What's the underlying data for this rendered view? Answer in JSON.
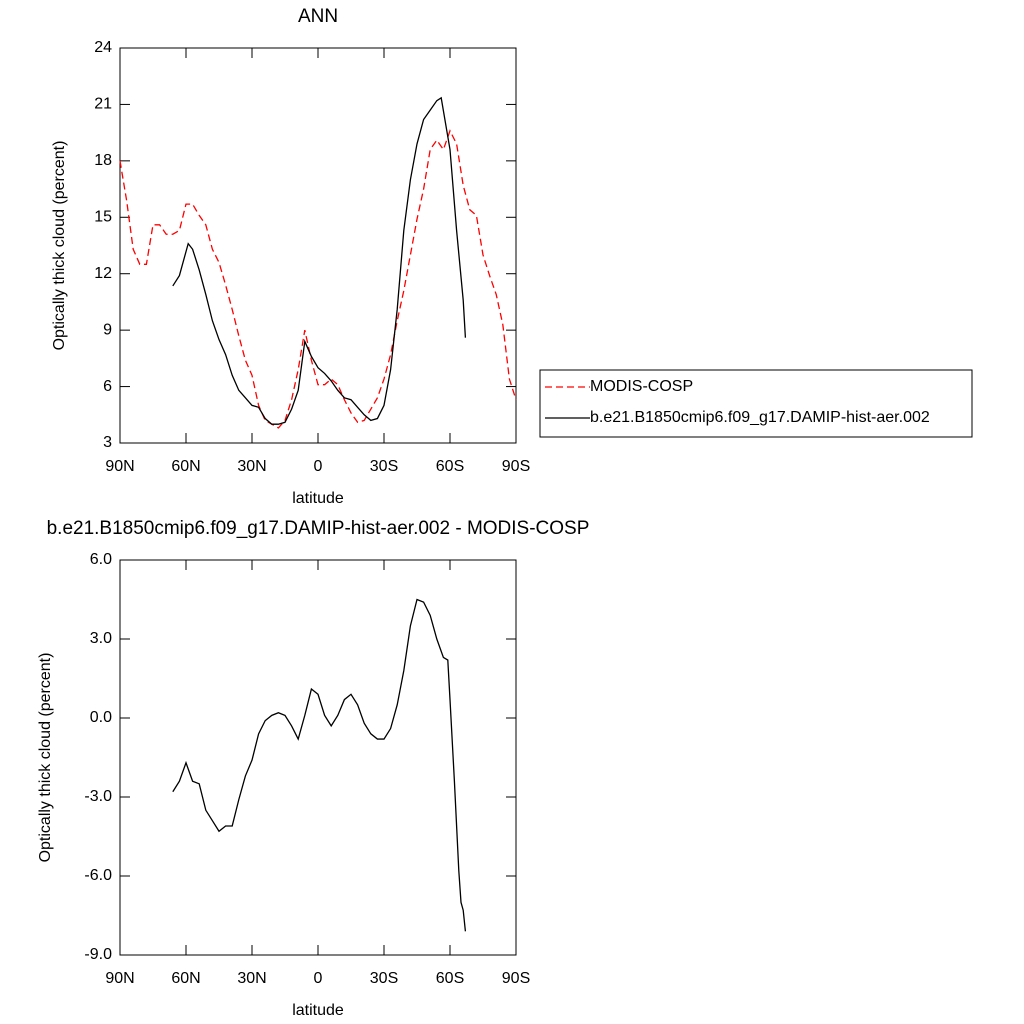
{
  "chart_data": [
    {
      "type": "line",
      "title": "ANN",
      "xlabel": "latitude",
      "ylabel": "Optically thick cloud (percent)",
      "xlim": [
        90,
        -90
      ],
      "ylim": [
        3,
        24
      ],
      "xticks": [
        {
          "value": 90,
          "label": "90N"
        },
        {
          "value": 60,
          "label": "60N"
        },
        {
          "value": 30,
          "label": "30N"
        },
        0,
        {
          "value": -30,
          "label": "30S"
        },
        {
          "value": -60,
          "label": "60S"
        },
        {
          "value": -90,
          "label": "90S"
        }
      ],
      "yticks": [
        3,
        6,
        9,
        12,
        15,
        18,
        21,
        24
      ],
      "legend": "right",
      "series": [
        {
          "name": "MODIS-COSP",
          "color": "#ff0000",
          "dashed": true,
          "x": [
            90,
            87,
            84,
            81,
            78,
            75,
            72,
            69,
            66,
            63,
            60,
            57,
            54,
            51,
            48,
            45,
            42,
            39,
            36,
            33,
            30,
            27,
            24,
            21,
            18,
            15,
            12,
            9,
            6,
            3,
            0,
            -3,
            -6,
            -9,
            -12,
            -15,
            -18,
            -21,
            -24,
            -27,
            -30,
            -33,
            -36,
            -39,
            -42,
            -45,
            -48,
            -51,
            -54,
            -57,
            -60,
            -63,
            -66,
            -69,
            -72,
            -75,
            -78,
            -81,
            -84,
            -87,
            -90
          ],
          "values": [
            18.0,
            15.9,
            13.3,
            12.5,
            12.5,
            14.6,
            14.6,
            14.1,
            14.1,
            14.3,
            15.7,
            15.7,
            15.1,
            14.6,
            13.3,
            12.6,
            11.4,
            10.1,
            8.7,
            7.4,
            6.6,
            5.0,
            4.2,
            4.0,
            3.8,
            4.2,
            5.3,
            6.9,
            9.0,
            7.4,
            6.1,
            6.1,
            6.4,
            6.1,
            5.3,
            4.6,
            4.1,
            4.2,
            4.8,
            5.4,
            6.4,
            7.7,
            9.5,
            11.1,
            13.0,
            14.9,
            16.5,
            18.6,
            19.1,
            18.6,
            19.6,
            18.9,
            16.7,
            15.4,
            15.1,
            13.0,
            11.9,
            10.9,
            9.3,
            6.4,
            5.3
          ]
        },
        {
          "name": "b.e21.B1850cmip6.f09_g17.DAMIP-hist-aer.002",
          "color": "#000000",
          "dashed": false,
          "x": [
            66,
            63,
            59,
            57,
            54,
            51,
            48,
            45,
            42,
            39,
            36,
            33,
            30,
            27,
            24,
            21,
            18,
            15,
            12,
            9,
            6,
            3,
            0,
            -3,
            -6,
            -9,
            -12,
            -15,
            -18,
            -21,
            -24,
            -27,
            -30,
            -33,
            -36,
            -39,
            -42,
            -45,
            -48,
            -51,
            -54,
            -56,
            -60,
            -63,
            -66,
            -67
          ],
          "values": [
            11.35,
            11.9,
            13.6,
            13.3,
            12.2,
            10.9,
            9.5,
            8.5,
            7.7,
            6.6,
            5.8,
            5.4,
            5.0,
            4.9,
            4.3,
            4.0,
            4.0,
            4.1,
            4.8,
            5.8,
            8.4,
            7.6,
            7.0,
            6.7,
            6.3,
            5.8,
            5.4,
            5.3,
            4.9,
            4.5,
            4.2,
            4.3,
            5.0,
            6.9,
            10.1,
            14.3,
            17.0,
            18.9,
            20.2,
            20.7,
            21.2,
            21.35,
            18.6,
            14.3,
            10.6,
            8.6
          ]
        }
      ]
    },
    {
      "type": "line",
      "title": "b.e21.B1850cmip6.f09_g17.DAMIP-hist-aer.002 - MODIS-COSP",
      "xlabel": "latitude",
      "ylabel": "Optically thick cloud (percent)",
      "xlim": [
        90,
        -90
      ],
      "ylim": [
        -9,
        6
      ],
      "xticks": [
        {
          "value": 90,
          "label": "90N"
        },
        {
          "value": 60,
          "label": "60N"
        },
        {
          "value": 30,
          "label": "30N"
        },
        0,
        {
          "value": -30,
          "label": "30S"
        },
        {
          "value": -60,
          "label": "60S"
        },
        {
          "value": -90,
          "label": "90S"
        }
      ],
      "yticks": [
        {
          "value": -9,
          "label": "-9.0"
        },
        {
          "value": -6,
          "label": "-6.0"
        },
        {
          "value": -3,
          "label": "-3.0"
        },
        {
          "value": 0,
          "label": "0.0"
        },
        {
          "value": 3,
          "label": "3.0"
        },
        {
          "value": 6,
          "label": "6.0"
        }
      ],
      "series": [
        {
          "color": "#000000",
          "dashed": false,
          "x": [
            66,
            63,
            60,
            57,
            54,
            51,
            48,
            45,
            42,
            39,
            36,
            33,
            30,
            27,
            24,
            21,
            18,
            15,
            12,
            9,
            6,
            3,
            0,
            -3,
            -6,
            -9,
            -12,
            -15,
            -18,
            -21,
            -24,
            -27,
            -30,
            -33,
            -36,
            -39,
            -42,
            -45,
            -48,
            -51,
            -54,
            -57,
            -59,
            -60,
            -62,
            -64,
            -65,
            -66,
            -67
          ],
          "values": [
            -2.8,
            -2.4,
            -1.7,
            -2.4,
            -2.5,
            -3.5,
            -3.9,
            -4.3,
            -4.1,
            -4.1,
            -3.1,
            -2.2,
            -1.6,
            -0.6,
            -0.1,
            0.1,
            0.2,
            0.1,
            -0.3,
            -0.8,
            0.1,
            1.1,
            0.9,
            0.1,
            -0.3,
            0.1,
            0.7,
            0.9,
            0.5,
            -0.2,
            -0.6,
            -0.8,
            -0.8,
            -0.4,
            0.5,
            1.8,
            3.5,
            4.5,
            4.4,
            3.9,
            3.0,
            2.3,
            2.2,
            0.7,
            -2.4,
            -5.8,
            -7.0,
            -7.3,
            -8.1
          ]
        }
      ]
    }
  ]
}
